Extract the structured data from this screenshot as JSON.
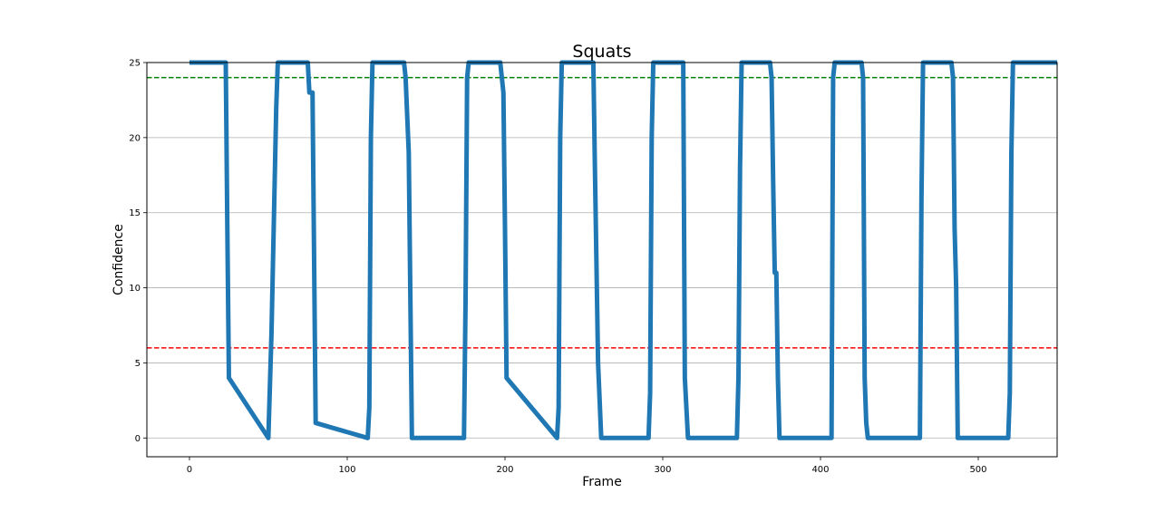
{
  "chart_data": {
    "type": "line",
    "title": "Squats",
    "xlabel": "Frame",
    "ylabel": "Confidence",
    "xlim": [
      -27,
      550
    ],
    "ylim": [
      -1.25,
      25
    ],
    "xticks": [
      0,
      100,
      200,
      300,
      400,
      500
    ],
    "yticks": [
      0,
      5,
      10,
      15,
      20,
      25
    ],
    "grid": "y",
    "legend": "none",
    "series": [
      {
        "color": "#1f77b4",
        "x": [
          0,
          23,
          24,
          25,
          50,
          52,
          55,
          56,
          75,
          76,
          78,
          80,
          113,
          114,
          115,
          116,
          136,
          137,
          139,
          141,
          174,
          175,
          176,
          177,
          197,
          198,
          199,
          200,
          201,
          233,
          234,
          235,
          236,
          256,
          257,
          259,
          261,
          291,
          292,
          293,
          294,
          313,
          314,
          316,
          347,
          348,
          349,
          350,
          368,
          369,
          370,
          371,
          372,
          373,
          374,
          407,
          408,
          409,
          410,
          426,
          427,
          428,
          429,
          430,
          463,
          464,
          465,
          466,
          483,
          484,
          485,
          486,
          487,
          519,
          520,
          521,
          522,
          550
        ],
        "y": [
          25,
          25,
          14,
          4,
          0,
          7,
          22,
          25,
          25,
          23,
          23,
          1,
          0,
          2,
          20,
          25,
          25,
          24,
          19,
          0,
          0,
          9,
          24,
          25,
          25,
          24,
          23,
          14,
          4,
          0,
          2,
          20,
          25,
          25,
          18,
          5,
          0,
          0,
          3,
          20,
          25,
          25,
          4,
          0,
          0,
          4,
          18,
          25,
          25,
          24,
          17,
          11,
          11,
          4,
          0,
          0,
          24,
          25,
          25,
          25,
          24,
          4,
          1,
          0,
          0,
          16,
          25,
          25,
          25,
          24,
          14,
          10,
          0,
          0,
          3,
          19,
          25,
          25
        ]
      }
    ],
    "reference_lines": [
      {
        "y": 24,
        "color": "#008000",
        "style": "dashed"
      },
      {
        "y": 6,
        "color": "#ff0000",
        "style": "dashed"
      }
    ]
  }
}
